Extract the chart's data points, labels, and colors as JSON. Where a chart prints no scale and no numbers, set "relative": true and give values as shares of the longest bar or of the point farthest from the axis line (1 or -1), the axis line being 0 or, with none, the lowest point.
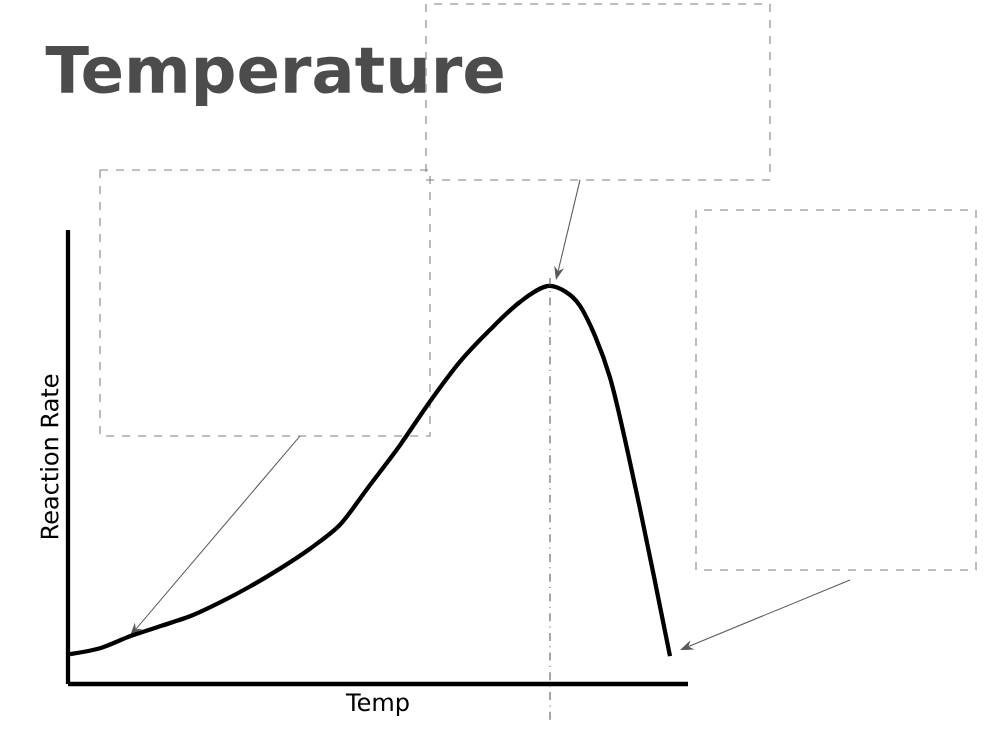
{
  "chart_data": {
    "type": "line",
    "title": "Temperature",
    "xlabel": "Temp",
    "ylabel": "Reaction Rate",
    "relative": true,
    "categories": [
      null,
      null,
      null,
      null,
      null,
      null,
      null,
      null,
      null,
      null,
      null,
      null,
      null,
      null,
      null,
      null,
      null,
      null,
      null,
      null,
      null
    ],
    "values": [
      0.075,
      0.09,
      0.12,
      0.145,
      0.17,
      0.205,
      0.245,
      0.29,
      0.34,
      0.4,
      0.5,
      0.6,
      0.71,
      0.81,
      0.89,
      0.96,
      1.0,
      0.95,
      0.77,
      0.44,
      0.07
    ],
    "color": "#000000",
    "marker": "none",
    "line_style": "solid",
    "tick_labels": false
  }
}
